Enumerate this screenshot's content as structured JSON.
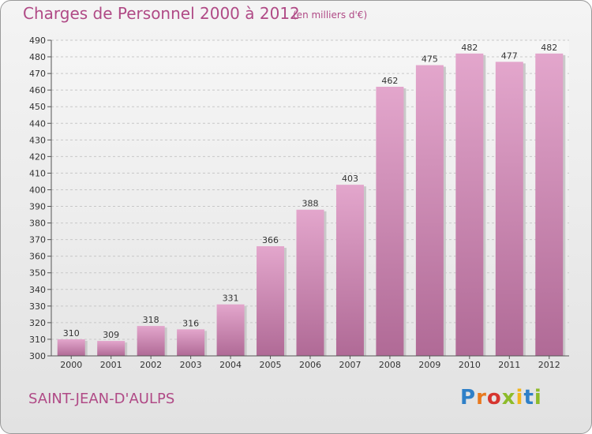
{
  "title": "Charges de Personnel 2000 à 2012",
  "subtitle": "(en milliers d'€)",
  "place": "SAINT-JEAN-D'AULPS",
  "logo_text": "Proxiti",
  "colors": {
    "accent": "#b04a86",
    "bar_top": "#e3a6cc",
    "bar_bottom": "#b06a96",
    "background": "#ececec"
  },
  "chart_data": {
    "type": "bar",
    "categories": [
      "2000",
      "2001",
      "2002",
      "2003",
      "2004",
      "2005",
      "2006",
      "2007",
      "2008",
      "2009",
      "2010",
      "2011",
      "2012"
    ],
    "values": [
      310,
      309,
      318,
      316,
      331,
      366,
      388,
      403,
      462,
      475,
      482,
      477,
      482
    ],
    "title": "Charges de Personnel 2000 à 2012",
    "subtitle": "(en milliers d'€)",
    "xlabel": "",
    "ylabel": "",
    "ylim": [
      300,
      490
    ],
    "ytick_step": 10,
    "grid": true,
    "data_labels": true,
    "legend": "none"
  }
}
